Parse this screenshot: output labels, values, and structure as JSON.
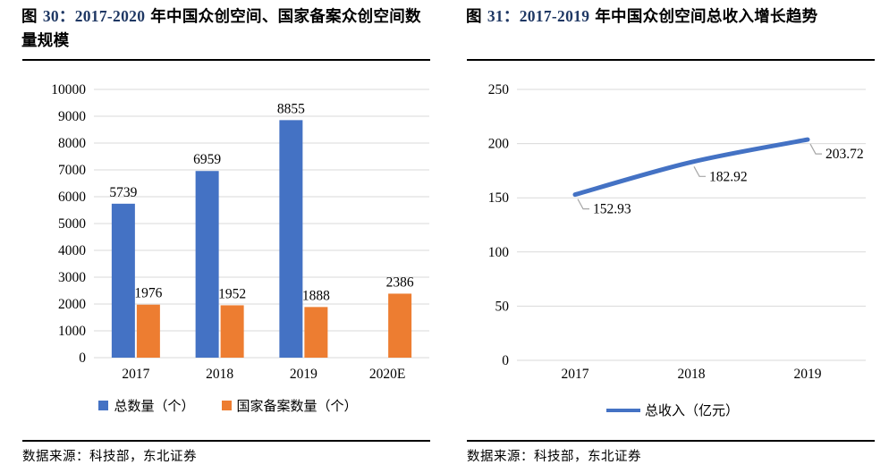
{
  "colors": {
    "bar_blue": "#4472C4",
    "bar_orange": "#ED7D31",
    "line_blue": "#4472C4",
    "grid": "#D9D9D9",
    "leader": "#A6A6A6",
    "title_num": "#1F3864",
    "text": "#000000"
  },
  "left_panel": {
    "title": {
      "prefix": "图",
      "num": "30：2017-2020",
      "suffix": "年中国众创空间、国家备案众创空间数量规模"
    },
    "legend": [
      {
        "label": "总数量（个）"
      },
      {
        "label": "国家备案数量（个）"
      }
    ],
    "source": "数据来源：科技部，东北证券"
  },
  "right_panel": {
    "title": {
      "prefix": "图",
      "num": "31：2017-2019",
      "suffix": "年中国众创空间总收入增长趋势"
    },
    "legend": [
      {
        "label": "总收入（亿元）"
      }
    ],
    "source": "数据来源：科技部，东北证券"
  },
  "chart_data": [
    {
      "type": "bar",
      "title": "2017-2020 年中国众创空间、国家备案众创空间数量规模",
      "categories": [
        "2017",
        "2018",
        "2019",
        "2020E"
      ],
      "series": [
        {
          "name": "总数量（个）",
          "color": "#4472C4",
          "values": [
            5739,
            6959,
            8855,
            null
          ]
        },
        {
          "name": "国家备案数量（个）",
          "color": "#ED7D31",
          "values": [
            1976,
            1952,
            1888,
            2386
          ]
        }
      ],
      "ylim": [
        0,
        10000
      ],
      "ytick": 1000,
      "grid": true,
      "legend_position": "bottom"
    },
    {
      "type": "line",
      "title": "2017-2019 年中国众创空间总收入增长趋势",
      "categories": [
        "2017",
        "2018",
        "2019"
      ],
      "series": [
        {
          "name": "总收入（亿元）",
          "color": "#4472C4",
          "values": [
            152.93,
            182.92,
            203.72
          ]
        }
      ],
      "data_labels": [
        "152.93",
        "182.92",
        "203.72"
      ],
      "ylim": [
        0,
        250
      ],
      "ytick": 50,
      "grid": true,
      "legend_position": "bottom"
    }
  ]
}
